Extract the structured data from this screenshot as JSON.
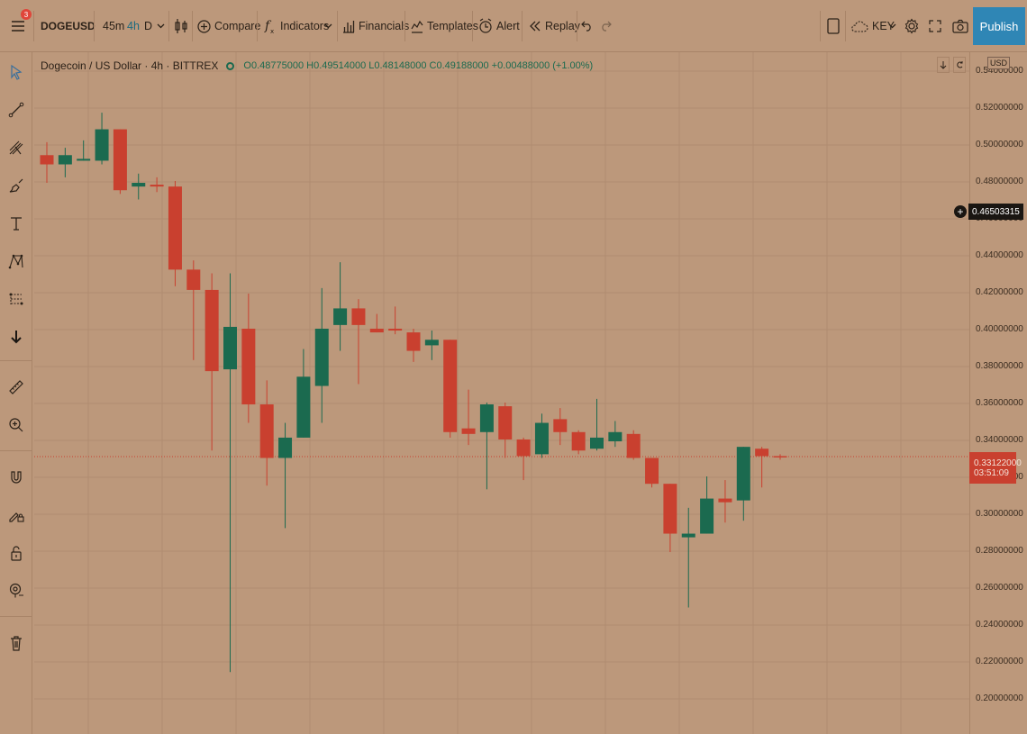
{
  "toolbar": {
    "notification_count": "3",
    "symbol": "DOGEUSD",
    "intervals": [
      "45m",
      "4h",
      "D"
    ],
    "active_interval": "4h",
    "compare_label": "Compare",
    "indicators_label": "Indicators",
    "financials_label": "Financials",
    "templates_label": "Templates",
    "alert_label": "Alert",
    "replay_label": "Replay",
    "layout_name": "KEY",
    "publish_label": "Publish"
  },
  "legend": {
    "title": "Dogecoin / US Dollar · 4h · BITTREX",
    "ohlc": "O0.48775000 H0.49514000 L0.48148000 C0.49188000 +0.00488000 (+1.00%)"
  },
  "axis": {
    "currency": "USD",
    "ticks": [
      "0.54000000",
      "0.52000000",
      "0.50000000",
      "0.48000000",
      "0.46000000",
      "0.44000000",
      "0.42000000",
      "0.40000000",
      "0.38000000",
      "0.36000000",
      "0.34000000",
      "0.32000000",
      "0.30000000",
      "0.28000000",
      "0.26000000",
      "0.24000000",
      "0.22000000",
      "0.20000000"
    ],
    "crosshair_price": "0.46503315",
    "last_price": "0.33122000",
    "countdown": "03:51:09"
  },
  "colors": {
    "up": "#1b6a4f",
    "down": "#c9402f",
    "background": "#bc987b",
    "grid": "#b08c70",
    "accent": "#2f86b5"
  },
  "icons": {
    "left_toolbar": [
      "cursor-icon",
      "trend-line-icon",
      "pitchfork-icon",
      "brush-icon",
      "text-icon",
      "pattern-icon",
      "prediction-icon",
      "arrow-down-icon",
      "ruler-icon",
      "zoom-in-icon",
      "magnet-icon",
      "lock-drawing-icon",
      "unlock-icon",
      "eye-icon",
      "trash-icon"
    ]
  },
  "chart_data": {
    "type": "candlestick",
    "symbol": "DOGEUSD",
    "interval": "4h",
    "ylim": [
      0.195,
      0.545
    ],
    "grid": true,
    "last_price_line": 0.33122,
    "candles": [
      {
        "o": 0.4945,
        "h": 0.5015,
        "l": 0.4795,
        "c": 0.4895
      },
      {
        "o": 0.4895,
        "h": 0.4985,
        "l": 0.4825,
        "c": 0.4945
      },
      {
        "o": 0.4915,
        "h": 0.5025,
        "l": 0.4915,
        "c": 0.4925
      },
      {
        "o": 0.4915,
        "h": 0.5175,
        "l": 0.4895,
        "c": 0.5085
      },
      {
        "o": 0.5085,
        "h": 0.5085,
        "l": 0.4735,
        "c": 0.4755
      },
      {
        "o": 0.4775,
        "h": 0.4845,
        "l": 0.4705,
        "c": 0.4795
      },
      {
        "o": 0.4785,
        "h": 0.4825,
        "l": 0.4745,
        "c": 0.4775
      },
      {
        "o": 0.4775,
        "h": 0.4805,
        "l": 0.4235,
        "c": 0.4325
      },
      {
        "o": 0.4325,
        "h": 0.4375,
        "l": 0.3835,
        "c": 0.4215
      },
      {
        "o": 0.4215,
        "h": 0.4305,
        "l": 0.3345,
        "c": 0.3775
      },
      {
        "o": 0.3785,
        "h": 0.4305,
        "l": 0.2145,
        "c": 0.4015
      },
      {
        "o": 0.4005,
        "h": 0.4195,
        "l": 0.3495,
        "c": 0.3595
      },
      {
        "o": 0.3595,
        "h": 0.3725,
        "l": 0.3155,
        "c": 0.3305
      },
      {
        "o": 0.3305,
        "h": 0.3495,
        "l": 0.2925,
        "c": 0.3415
      },
      {
        "o": 0.3415,
        "h": 0.3895,
        "l": 0.3415,
        "c": 0.3745
      },
      {
        "o": 0.3695,
        "h": 0.4225,
        "l": 0.3495,
        "c": 0.4005
      },
      {
        "o": 0.4025,
        "h": 0.4365,
        "l": 0.3885,
        "c": 0.4115
      },
      {
        "o": 0.4115,
        "h": 0.4165,
        "l": 0.3705,
        "c": 0.4025
      },
      {
        "o": 0.4005,
        "h": 0.4085,
        "l": 0.3985,
        "c": 0.3985
      },
      {
        "o": 0.4005,
        "h": 0.4125,
        "l": 0.3975,
        "c": 0.3995
      },
      {
        "o": 0.3985,
        "h": 0.4005,
        "l": 0.3825,
        "c": 0.3885
      },
      {
        "o": 0.3915,
        "h": 0.3995,
        "l": 0.3835,
        "c": 0.3945
      },
      {
        "o": 0.3945,
        "h": 0.3945,
        "l": 0.3415,
        "c": 0.3445
      },
      {
        "o": 0.3465,
        "h": 0.3675,
        "l": 0.3375,
        "c": 0.3435
      },
      {
        "o": 0.3445,
        "h": 0.3605,
        "l": 0.3135,
        "c": 0.3595
      },
      {
        "o": 0.3585,
        "h": 0.3605,
        "l": 0.3305,
        "c": 0.3405
      },
      {
        "o": 0.3405,
        "h": 0.3415,
        "l": 0.3185,
        "c": 0.3315
      },
      {
        "o": 0.3325,
        "h": 0.3545,
        "l": 0.3305,
        "c": 0.3495
      },
      {
        "o": 0.3515,
        "h": 0.3575,
        "l": 0.3375,
        "c": 0.3445
      },
      {
        "o": 0.3445,
        "h": 0.3455,
        "l": 0.3325,
        "c": 0.3345
      },
      {
        "o": 0.3355,
        "h": 0.3625,
        "l": 0.3345,
        "c": 0.3415
      },
      {
        "o": 0.3395,
        "h": 0.3505,
        "l": 0.3365,
        "c": 0.3445
      },
      {
        "o": 0.3435,
        "h": 0.3455,
        "l": 0.3295,
        "c": 0.3305
      },
      {
        "o": 0.3305,
        "h": 0.3305,
        "l": 0.3145,
        "c": 0.3165
      },
      {
        "o": 0.3165,
        "h": 0.3165,
        "l": 0.2795,
        "c": 0.2895
      },
      {
        "o": 0.2875,
        "h": 0.3035,
        "l": 0.2495,
        "c": 0.2895
      },
      {
        "o": 0.2895,
        "h": 0.3205,
        "l": 0.2895,
        "c": 0.3085
      },
      {
        "o": 0.3085,
        "h": 0.3185,
        "l": 0.2955,
        "c": 0.3065
      },
      {
        "o": 0.3075,
        "h": 0.3365,
        "l": 0.2965,
        "c": 0.3365
      },
      {
        "o": 0.3355,
        "h": 0.3365,
        "l": 0.3145,
        "c": 0.3315
      },
      {
        "o": 0.3315,
        "h": 0.3325,
        "l": 0.3295,
        "c": 0.3312
      }
    ]
  }
}
